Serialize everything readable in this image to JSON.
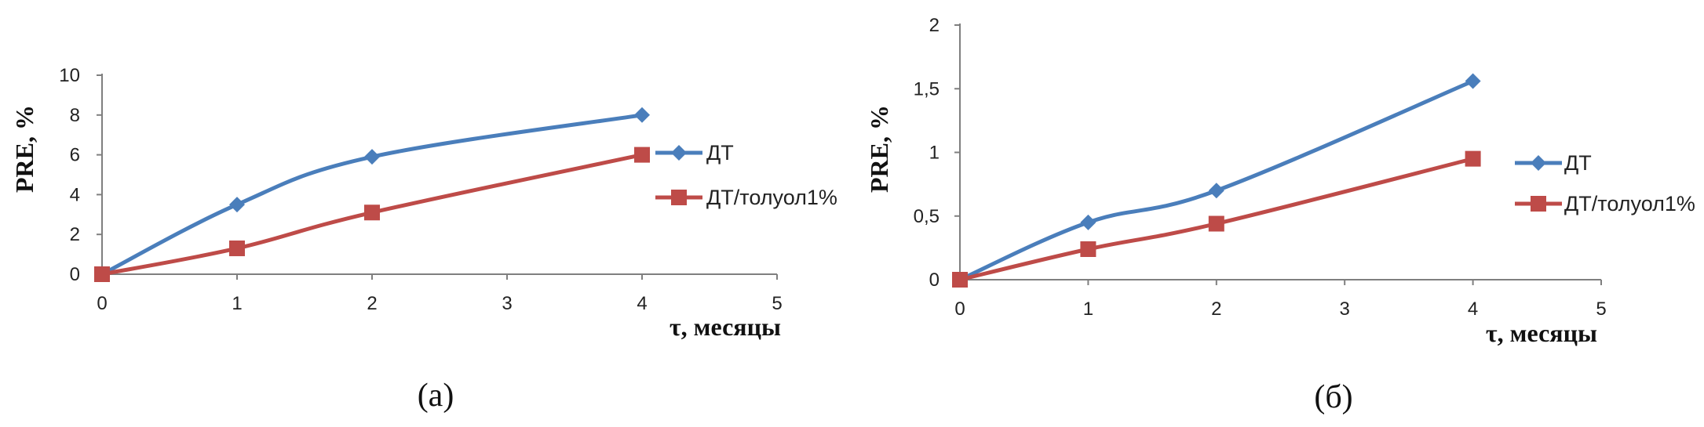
{
  "chart_data": [
    {
      "type": "line",
      "xlabel": "τ, месяцы",
      "ylabel": "PRE, %",
      "caption": "(а)",
      "xlim": [
        0,
        5
      ],
      "ylim": [
        0,
        10
      ],
      "xticks": [
        "0",
        "1",
        "2",
        "3",
        "4",
        "5"
      ],
      "yticks": [
        "0",
        "2",
        "4",
        "6",
        "8",
        "10"
      ],
      "grid": false,
      "legend_position": "right",
      "series": [
        {
          "name": "ДТ",
          "color": "#4a7ebb",
          "marker": "diamond",
          "x": [
            0,
            1,
            2,
            4
          ],
          "y": [
            0,
            3.5,
            5.9,
            8.0
          ]
        },
        {
          "name": "ДТ/толуол1%",
          "color": "#be4b48",
          "marker": "square",
          "x": [
            0,
            1,
            2,
            4
          ],
          "y": [
            0,
            1.3,
            3.1,
            6.0
          ]
        }
      ]
    },
    {
      "type": "line",
      "xlabel": "τ, месяцы",
      "ylabel": "PRE, %",
      "caption": "(б)",
      "xlim": [
        0,
        5
      ],
      "ylim": [
        0,
        2
      ],
      "xticks": [
        "0",
        "1",
        "2",
        "3",
        "4",
        "5"
      ],
      "yticks": [
        "0",
        "0,5",
        "1",
        "1,5",
        "2"
      ],
      "grid": false,
      "legend_position": "right",
      "series": [
        {
          "name": "ДТ",
          "color": "#4a7ebb",
          "marker": "diamond",
          "x": [
            0,
            1,
            2,
            4
          ],
          "y": [
            0,
            0.45,
            0.7,
            1.56
          ]
        },
        {
          "name": "ДТ/толуол1%",
          "color": "#be4b48",
          "marker": "square",
          "x": [
            0,
            1,
            2,
            4
          ],
          "y": [
            0,
            0.24,
            0.44,
            0.95
          ]
        }
      ]
    }
  ]
}
